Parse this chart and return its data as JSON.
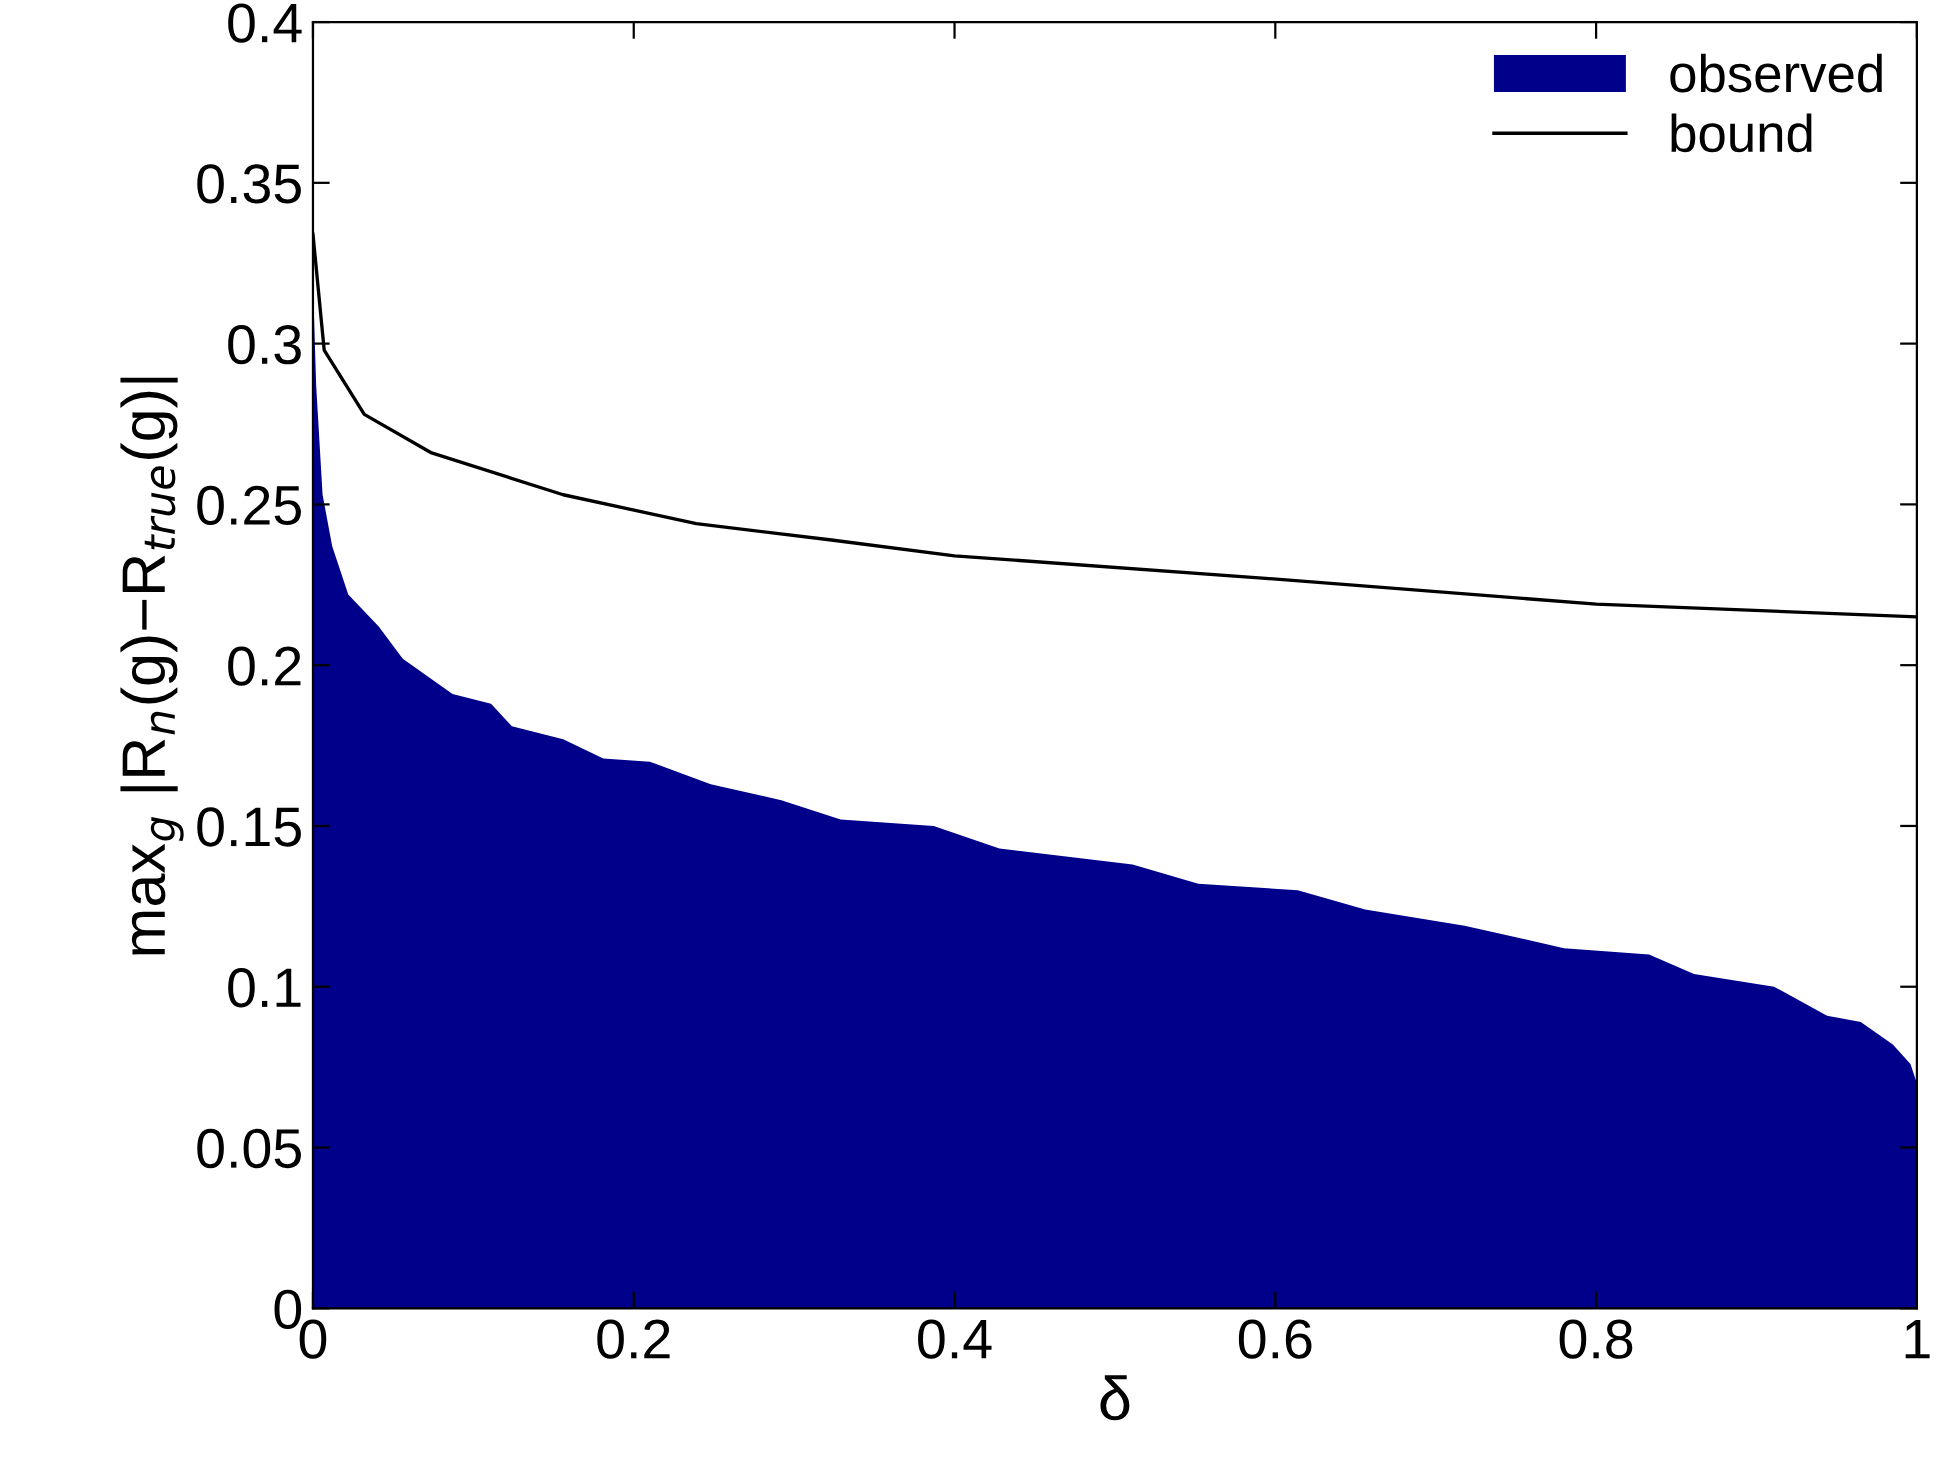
{
  "chart_data": {
    "type": "area",
    "xlabel": "δ",
    "ylabel": "max$_{g}$ |R$_{n}$(g)−R$_{true}$(g)|",
    "xlim": [
      0,
      1
    ],
    "ylim": [
      0,
      0.4
    ],
    "xticks": [
      0,
      0.2,
      0.4,
      0.6,
      0.8,
      1
    ],
    "yticks": [
      0,
      0.05,
      0.1,
      0.15,
      0.2,
      0.25,
      0.3,
      0.35,
      0.4
    ],
    "grid": false,
    "legend": "top right",
    "series": [
      {
        "name": "observed",
        "color": "#00008b",
        "x": [
          0,
          0.002,
          0.006,
          0.012,
          0.022,
          0.041,
          0.056,
          0.087,
          0.111,
          0.124,
          0.156,
          0.181,
          0.21,
          0.248,
          0.292,
          0.329,
          0.387,
          0.428,
          0.511,
          0.552,
          0.614,
          0.656,
          0.718,
          0.78,
          0.833,
          0.861,
          0.911,
          0.944,
          0.965,
          0.985,
          0.996,
          1
        ],
        "values": [
          0.319,
          0.287,
          0.253,
          0.237,
          0.222,
          0.212,
          0.202,
          0.191,
          0.188,
          0.181,
          0.177,
          0.171,
          0.17,
          0.163,
          0.158,
          0.152,
          0.15,
          0.143,
          0.138,
          0.132,
          0.13,
          0.124,
          0.119,
          0.112,
          0.11,
          0.104,
          0.1,
          0.091,
          0.089,
          0.082,
          0.076,
          0.07
        ]
      },
      {
        "name": "bound",
        "type": "line",
        "color": "#000000",
        "line_style": "solid",
        "x": [
          0,
          0.007,
          0.032,
          0.074,
          0.156,
          0.239,
          0.322,
          0.4,
          0.594,
          0.8,
          1
        ],
        "values": [
          0.334,
          0.298,
          0.278,
          0.266,
          0.253,
          0.244,
          0.239,
          0.234,
          0.227,
          0.219,
          0.215
        ]
      }
    ]
  }
}
